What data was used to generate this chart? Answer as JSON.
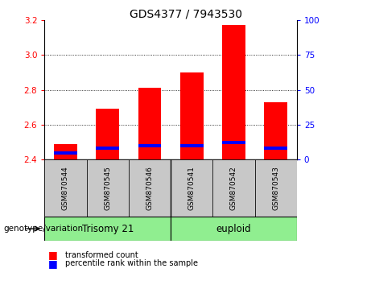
{
  "title": "GDS4377 / 7943530",
  "samples": [
    "GSM870544",
    "GSM870545",
    "GSM870546",
    "GSM870541",
    "GSM870542",
    "GSM870543"
  ],
  "transformed_counts": [
    2.49,
    2.69,
    2.81,
    2.9,
    3.17,
    2.73
  ],
  "percentile_ranks": [
    5,
    8,
    10,
    10,
    12,
    8
  ],
  "base_value": 2.4,
  "ylim_left": [
    2.4,
    3.2
  ],
  "ylim_right": [
    0,
    100
  ],
  "yticks_left": [
    2.4,
    2.6,
    2.8,
    3.0,
    3.2
  ],
  "yticks_right": [
    0,
    25,
    50,
    75,
    100
  ],
  "bar_color_red": "#FF0000",
  "bar_color_blue": "#0000FF",
  "tick_label_area_color": "#C8C8C8",
  "group_label_color": "#90EE90",
  "bar_width": 0.55,
  "group_label": "genotype/variation",
  "legend_red": "transformed count",
  "legend_blue": "percentile rank within the sample",
  "gridline_values": [
    2.6,
    2.8,
    3.0
  ],
  "trisomy_label": "Trisomy 21",
  "euploid_label": "euploid"
}
